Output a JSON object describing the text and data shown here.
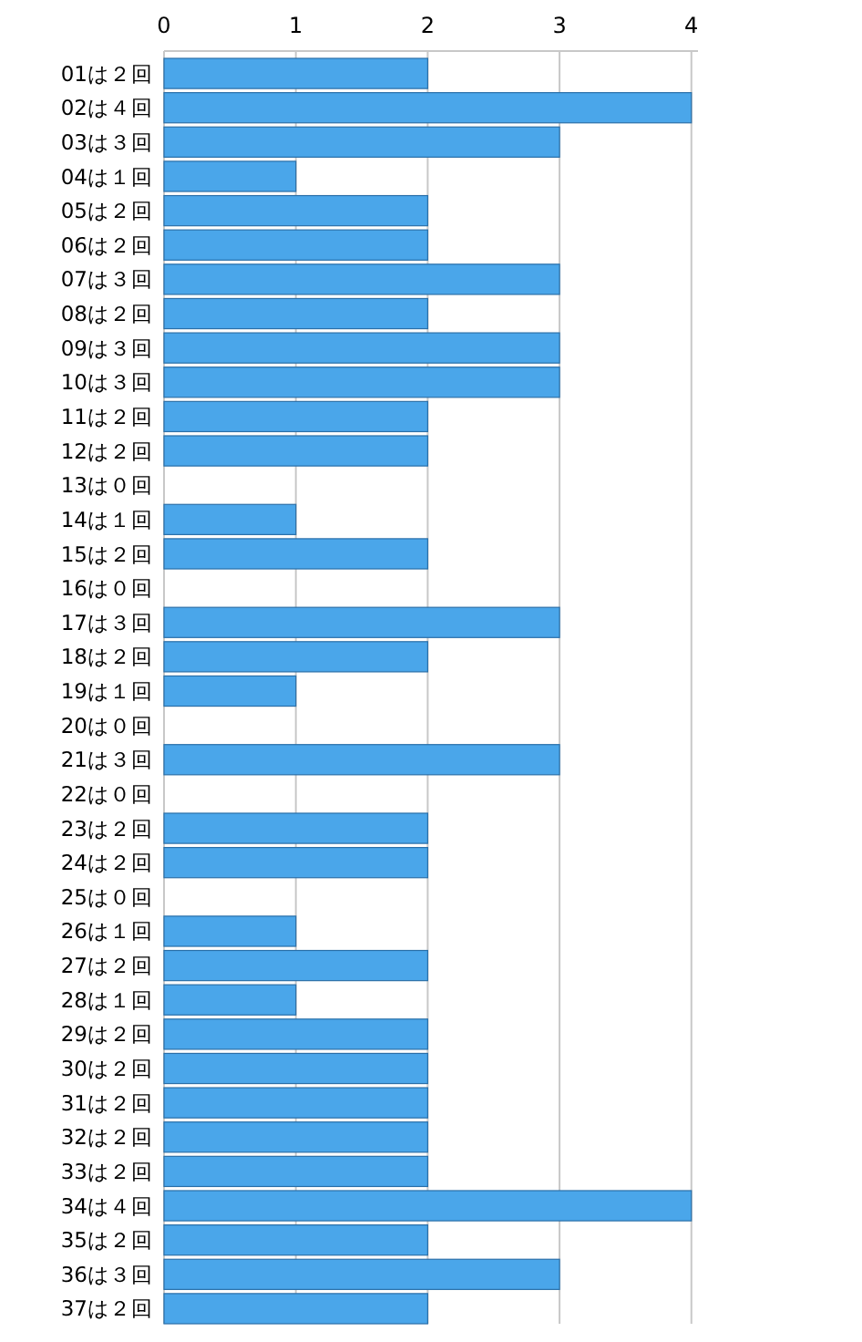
{
  "chart_data": {
    "type": "bar",
    "orientation": "horizontal",
    "categories": [
      "01は２回",
      "02は４回",
      "03は３回",
      "04は１回",
      "05は２回",
      "06は２回",
      "07は３回",
      "08は２回",
      "09は３回",
      "10は３回",
      "11は２回",
      "12は２回",
      "13は０回",
      "14は１回",
      "15は２回",
      "16は０回",
      "17は３回",
      "18は２回",
      "19は１回",
      "20は０回",
      "21は３回",
      "22は０回",
      "23は２回",
      "24は２回",
      "25は０回",
      "26は１回",
      "27は２回",
      "28は１回",
      "29は２回",
      "30は２回",
      "31は２回",
      "32は２回",
      "33は２回",
      "34は４回",
      "35は２回",
      "36は３回",
      "37は２回"
    ],
    "values": [
      2,
      4,
      3,
      1,
      2,
      2,
      3,
      2,
      3,
      3,
      2,
      2,
      0,
      1,
      2,
      0,
      3,
      2,
      1,
      0,
      3,
      0,
      2,
      2,
      0,
      1,
      2,
      1,
      2,
      2,
      2,
      2,
      2,
      4,
      2,
      3,
      2
    ],
    "color": "#4aa6ea",
    "xlim": [
      0,
      4.05
    ],
    "xticks": [
      0,
      1,
      2,
      3,
      4
    ],
    "grid": "x"
  }
}
